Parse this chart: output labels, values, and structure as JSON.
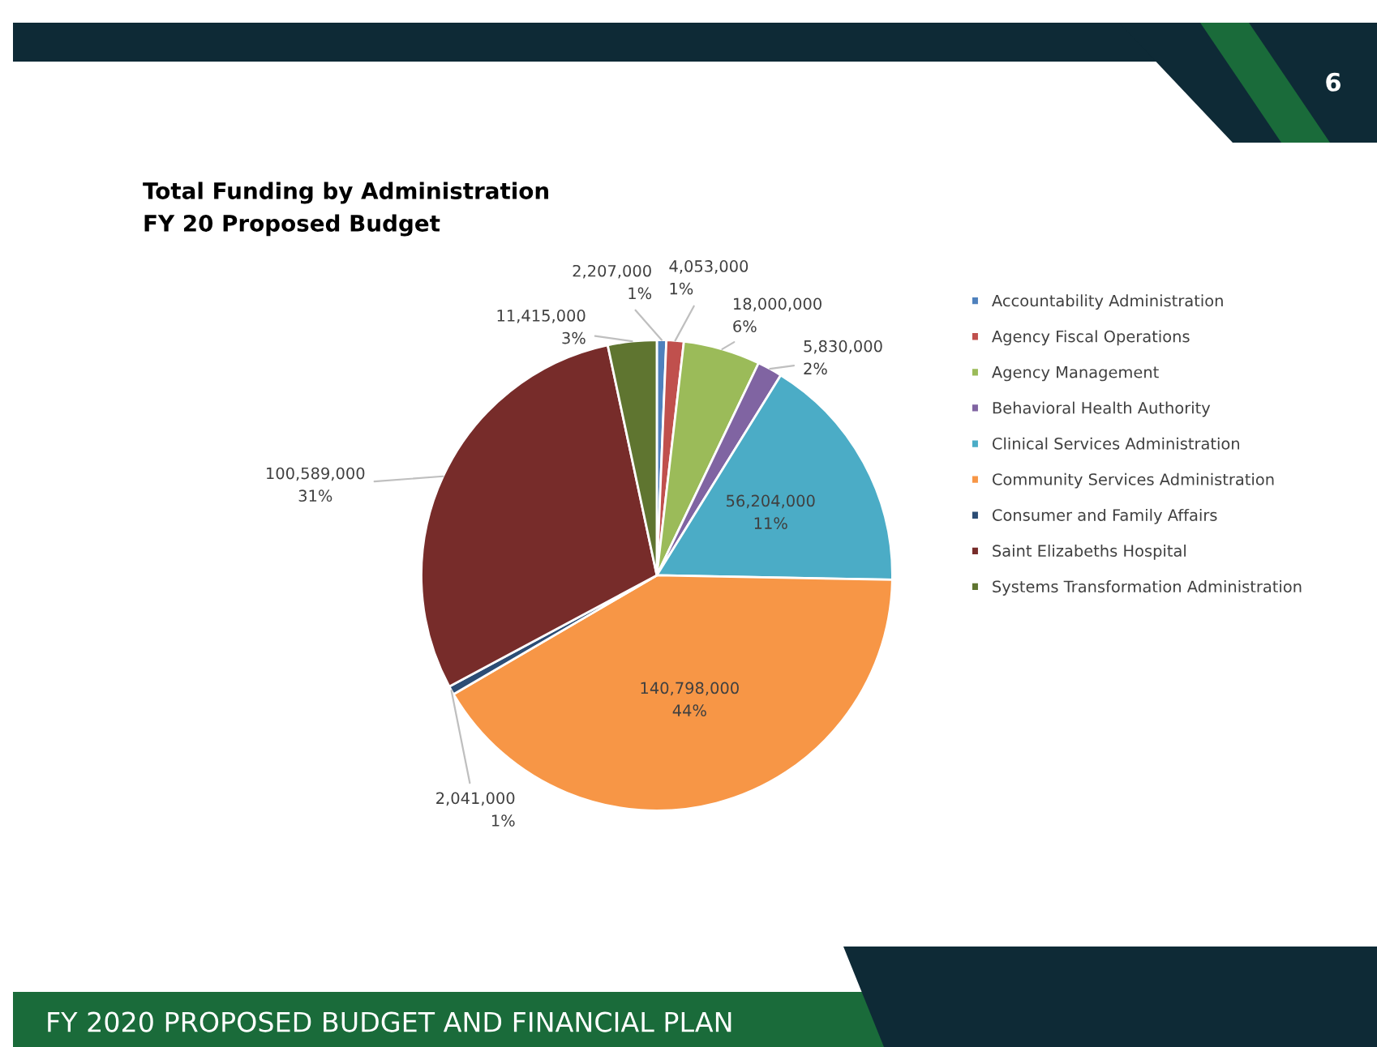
{
  "chart_data": {
    "type": "pie",
    "title": "Total Funding by Administration",
    "subtitle": "FY 20 Proposed Budget",
    "categories": [
      "Accountability Administration",
      "Agency Fiscal Operations",
      "Agency Management",
      "Behavioral Health Authority",
      "Clinical Services Administration",
      "Community Services Administration",
      "Consumer and Family Affairs",
      "Saint Elizabeths Hospital",
      "Systems Transformation Administration"
    ],
    "values": [
      2207000,
      4053000,
      18000000,
      5830000,
      56204000,
      140798000,
      2041000,
      100589000,
      11415000
    ],
    "colors": [
      "#4f81bd",
      "#c0504d",
      "#9bbb59",
      "#8064a2",
      "#4bacc6",
      "#f79646",
      "#2c4d75",
      "#772c2a",
      "#5f7530"
    ],
    "value_labels": [
      "2,207,000\n1%",
      "4,053,000\n1%",
      "18,000,000\n6%",
      "5,830,000\n2%",
      "56,204,000\n11%",
      "140,798,000\n44%",
      "2,041,000\n1%",
      "100,589,000\n31%",
      "11,415,000\n3%"
    ],
    "legend": "right",
    "annotations": [
      "6",
      "FY 2020 PROPOSED BUDGET AND FINANCIAL PLAN"
    ]
  }
}
